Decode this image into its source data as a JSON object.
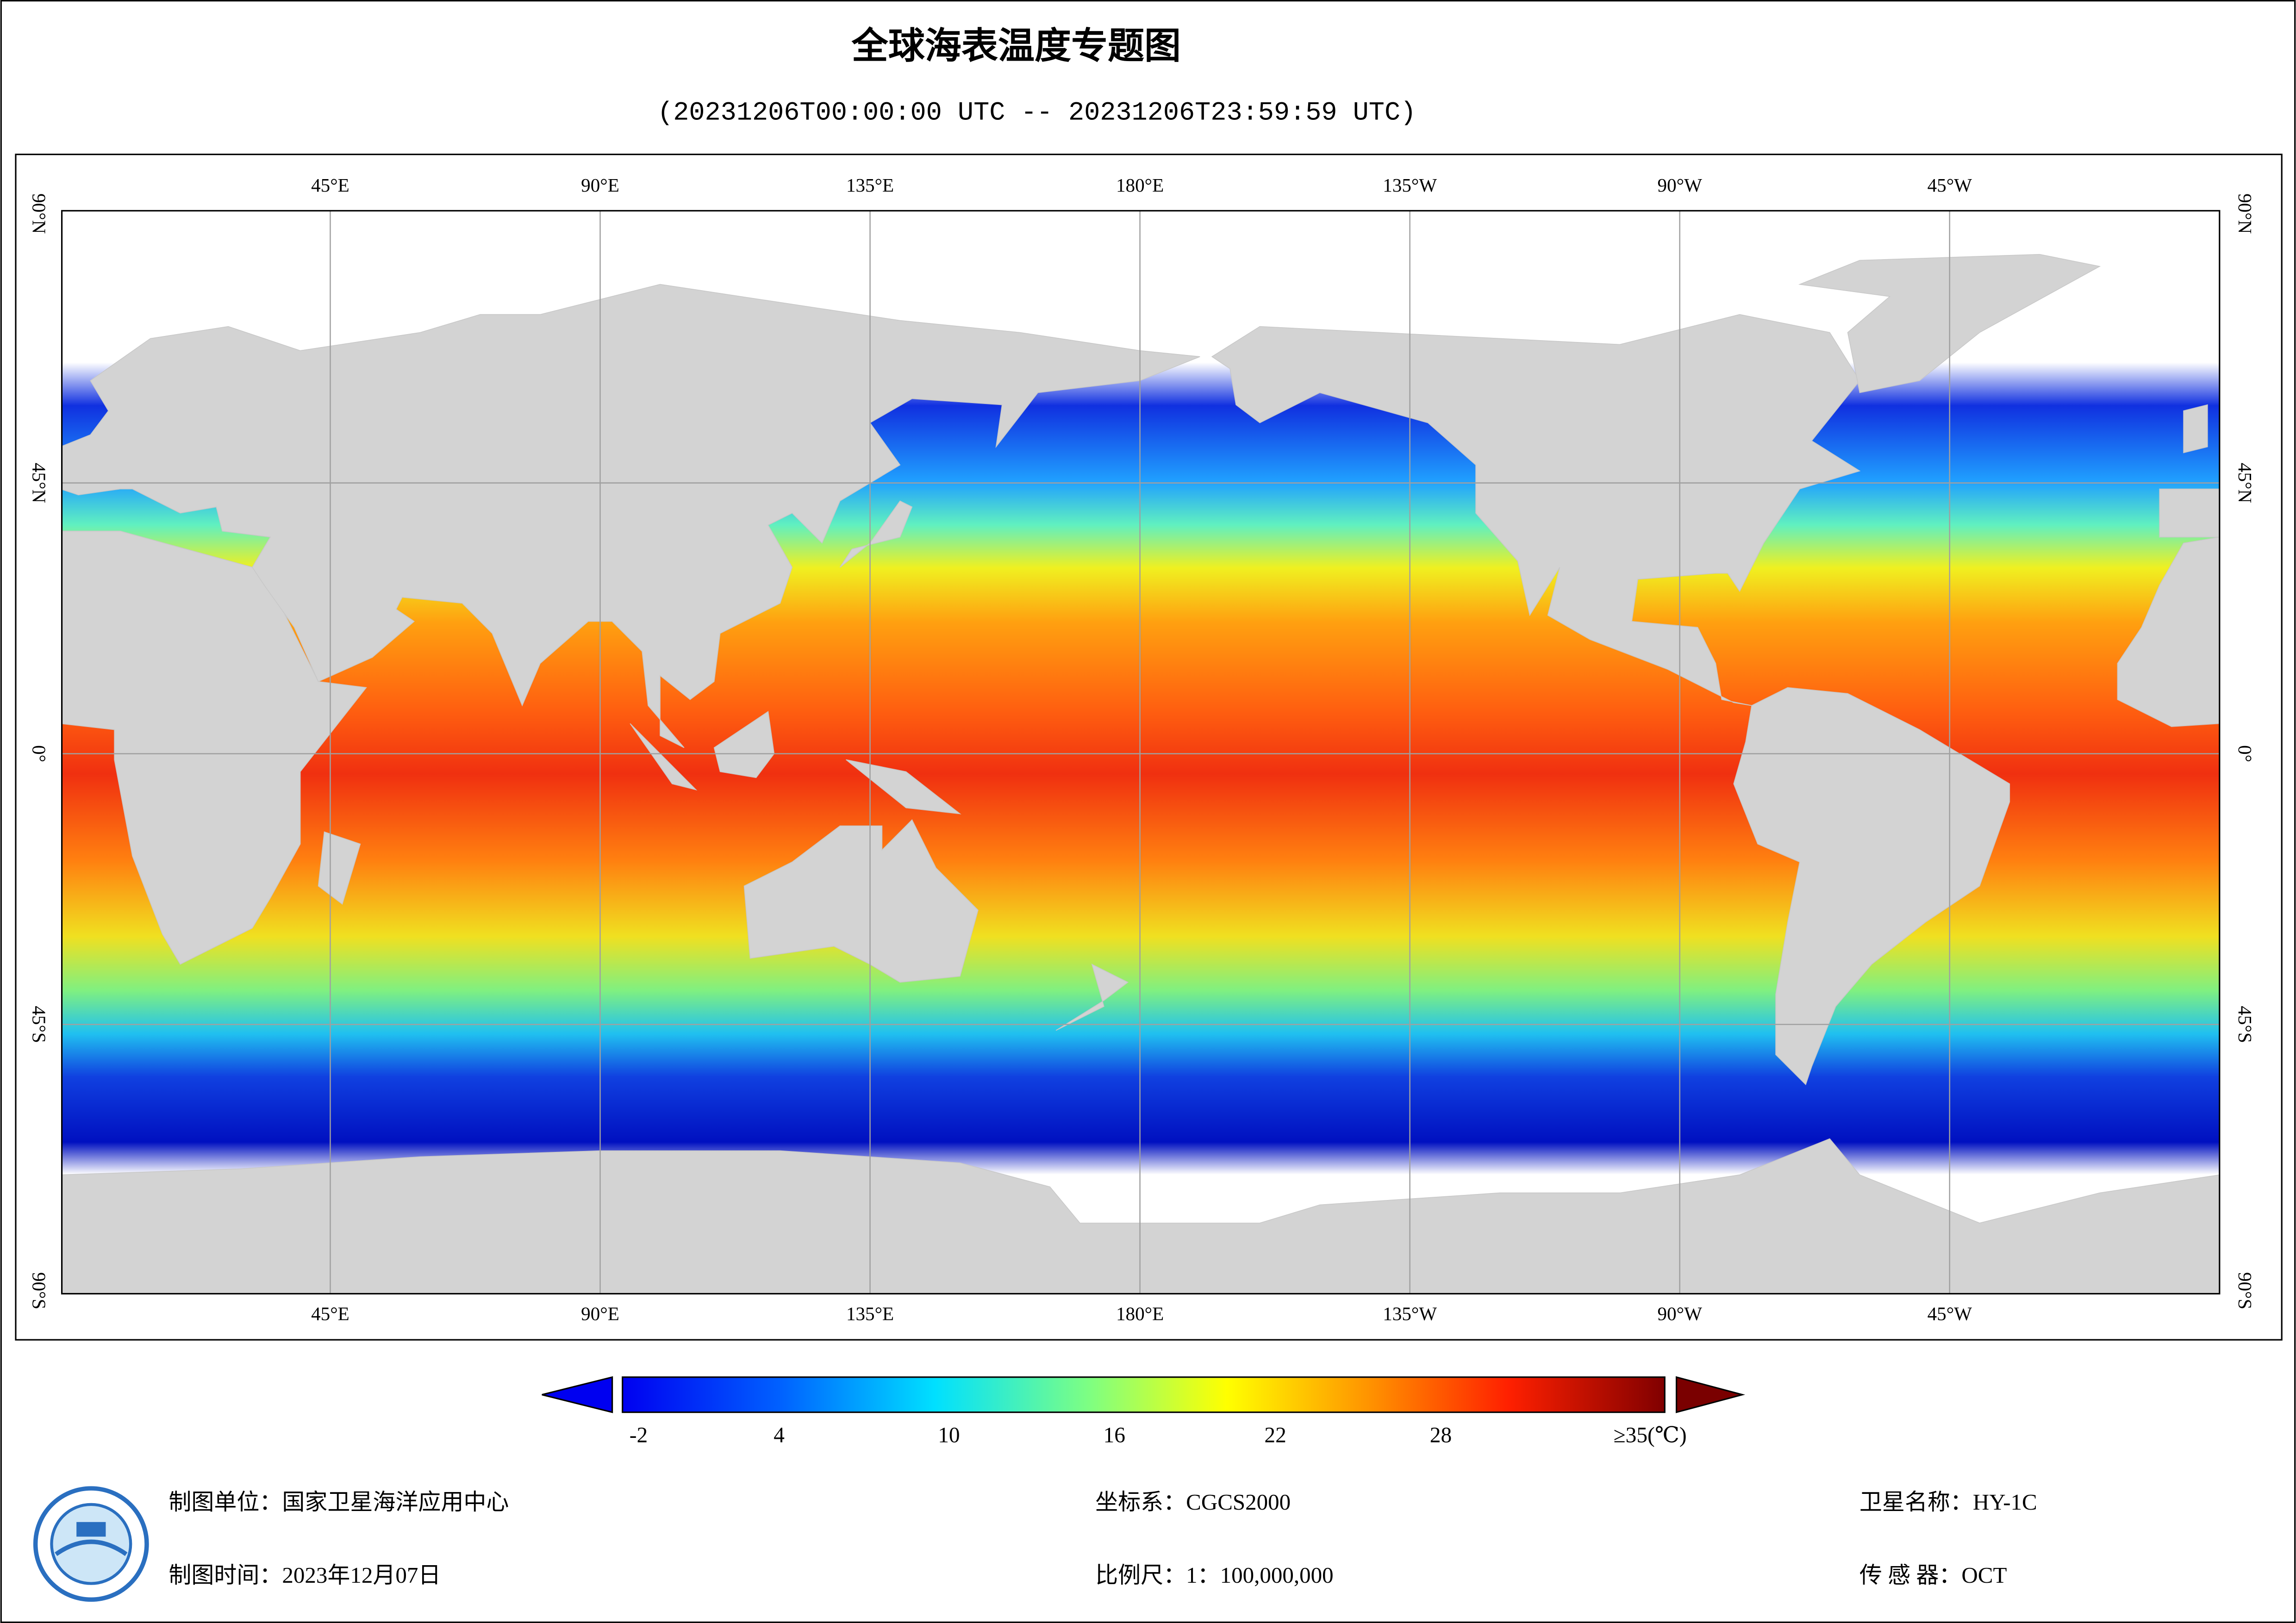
{
  "header": {
    "title": "全球海表温度专题图",
    "subtitle": "(20231206T00:00:00 UTC -- 20231206T23:59:59 UTC)"
  },
  "map": {
    "lon_labels": [
      "45°E",
      "90°E",
      "135°E",
      "180°E",
      "135°W",
      "90°W",
      "45°W"
    ],
    "lat_labels": [
      "90°N",
      "45°N",
      "0°",
      "45°S",
      "90°S"
    ]
  },
  "colorbar": {
    "tick_labels": [
      "-2",
      "4",
      "10",
      "16",
      "22",
      "28",
      "≥35(℃)"
    ]
  },
  "footer": {
    "producer": "制图单位：国家卫星海洋应用中心",
    "date": "制图时间：2023年12月07日",
    "crs": "坐标系：CGCS2000",
    "scale": "比例尺：1：100,000,000",
    "satellite": "卫星名称：HY-1C",
    "sensor": "传 感 器：OCT"
  }
}
